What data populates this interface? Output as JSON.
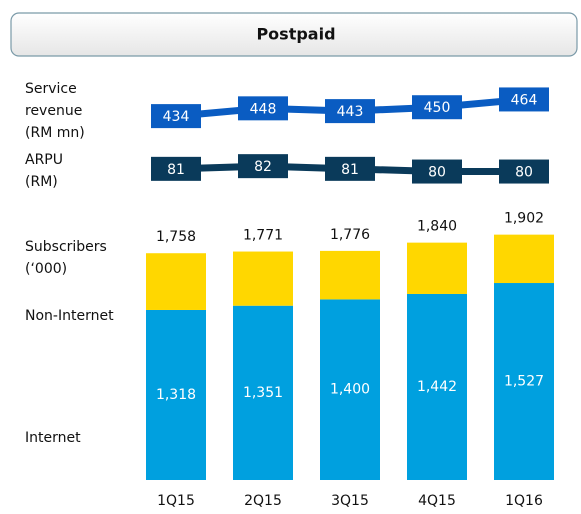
{
  "chart_data": {
    "type": "bar",
    "title": "Postpaid",
    "categories": [
      "1Q15",
      "2Q15",
      "3Q15",
      "4Q15",
      "1Q16"
    ],
    "ylim": [
      0,
      2000
    ],
    "series": [
      {
        "name": "Internet",
        "color": "#00a0df",
        "values": [
          1318,
          1351,
          1400,
          1442,
          1527
        ],
        "value_labels": [
          "1,318",
          "1,351",
          "1,400",
          "1,442",
          "1,527"
        ]
      },
      {
        "name": "Non-Internet",
        "color": "#ffd700",
        "values": [
          440,
          420,
          376,
          398,
          375
        ]
      }
    ],
    "totals": {
      "name": [
        "Subscribers",
        "(‘000)"
      ],
      "values": [
        1758,
        1771,
        1776,
        1840,
        1902
      ],
      "value_labels": [
        "1,758",
        "1,771",
        "1,776",
        "1,840",
        "1,902"
      ]
    },
    "lines": [
      {
        "type": "line",
        "name": [
          "Service",
          "revenue",
          "(RM mn)"
        ],
        "color": "#0a5cc2",
        "values": [
          434,
          448,
          443,
          450,
          464
        ],
        "ylim": [
          400,
          490
        ]
      },
      {
        "type": "line",
        "name": [
          "ARPU",
          "(RM)"
        ],
        "color": "#0a3a5a",
        "values": [
          81,
          82,
          81,
          80,
          80
        ],
        "ylim": [
          75,
          88
        ]
      }
    ]
  }
}
